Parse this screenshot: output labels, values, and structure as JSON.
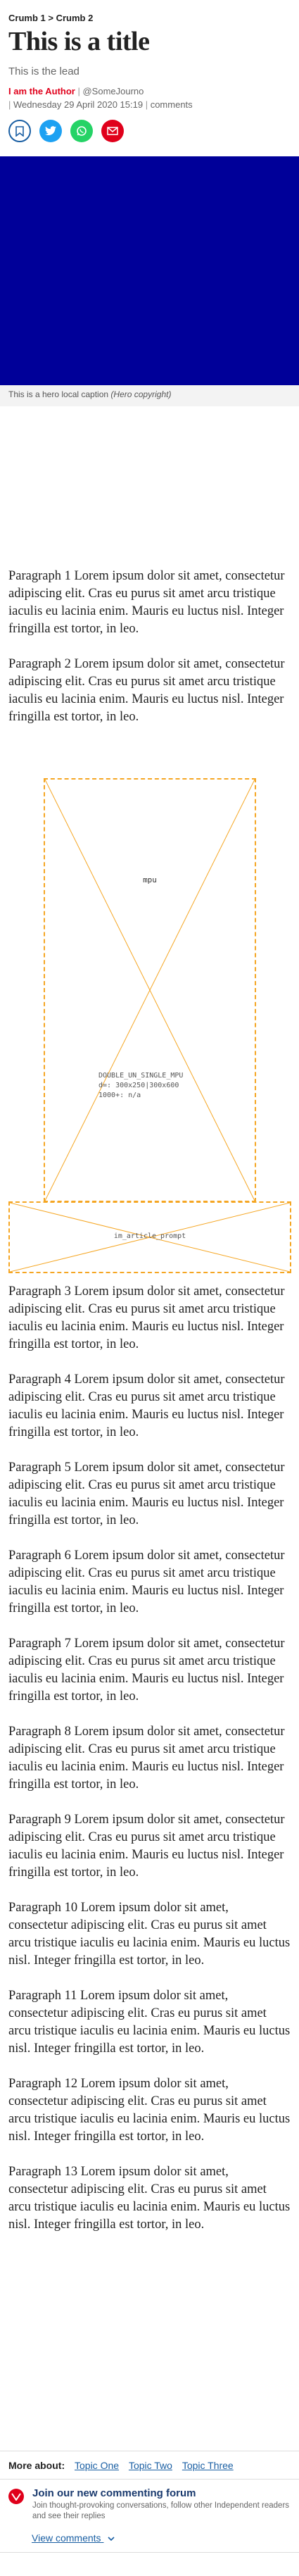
{
  "breadcrumb": {
    "item1": "Crumb 1",
    "separator": ">",
    "item2": "Crumb 2"
  },
  "article": {
    "title": "This is a title",
    "lead": "This is the lead",
    "author": "I am the Author",
    "handle": "@SomeJourno",
    "date": "Wednesday 29 April 2020 15:19",
    "comments_link": "comments"
  },
  "share": {
    "icons": [
      "bookmark-icon",
      "twitter-icon",
      "whatsapp-icon",
      "email-icon"
    ]
  },
  "hero": {
    "color": "#000099",
    "caption": "This is a hero local caption",
    "copyright": "(Hero copyright)"
  },
  "paragraphs": [
    "Paragraph 1 Lorem ipsum dolor sit amet, consectetur adipiscing elit. Cras eu purus sit amet arcu tristique iaculis eu lacinia enim. Mauris eu luctus nisl. Integer fringilla est tortor, in leo.",
    "Paragraph 2 Lorem ipsum dolor sit amet, consectetur adipiscing elit. Cras eu purus sit amet arcu tristique iaculis eu lacinia enim. Mauris eu luctus nisl. Integer fringilla est tortor, in leo.",
    "Paragraph 3 Lorem ipsum dolor sit amet, consectetur adipiscing elit. Cras eu purus sit amet arcu tristique iaculis eu lacinia enim. Mauris eu luctus nisl. Integer fringilla est tortor, in leo.",
    "Paragraph 4 Lorem ipsum dolor sit amet, consectetur adipiscing elit. Cras eu purus sit amet arcu tristique iaculis eu lacinia enim. Mauris eu luctus nisl. Integer fringilla est tortor, in leo.",
    "Paragraph 5 Lorem ipsum dolor sit amet, consectetur adipiscing elit. Cras eu purus sit amet arcu tristique iaculis eu lacinia enim. Mauris eu luctus nisl. Integer fringilla est tortor, in leo.",
    "Paragraph 6 Lorem ipsum dolor sit amet, consectetur adipiscing elit. Cras eu purus sit amet arcu tristique iaculis eu lacinia enim. Mauris eu luctus nisl. Integer fringilla est tortor, in leo.",
    "Paragraph 7 Lorem ipsum dolor sit amet, consectetur adipiscing elit. Cras eu purus sit amet arcu tristique iaculis eu lacinia enim. Mauris eu luctus nisl. Integer fringilla est tortor, in leo.",
    "Paragraph 8 Lorem ipsum dolor sit amet, consectetur adipiscing elit. Cras eu purus sit amet arcu tristique iaculis eu lacinia enim. Mauris eu luctus nisl. Integer fringilla est tortor, in leo.",
    "Paragraph 9 Lorem ipsum dolor sit amet, consectetur adipiscing elit. Cras eu purus sit amet arcu tristique iaculis eu lacinia enim. Mauris eu luctus nisl. Integer fringilla est tortor, in leo.",
    "Paragraph 10 Lorem ipsum dolor sit amet, consectetur adipiscing elit. Cras eu purus sit amet arcu tristique iaculis eu lacinia enim. Mauris eu luctus nisl. Integer fringilla est tortor, in leo.",
    "Paragraph 11 Lorem ipsum dolor sit amet, consectetur adipiscing elit. Cras eu purus sit amet arcu tristique iaculis eu lacinia enim. Mauris eu luctus nisl. Integer fringilla est tortor, in leo.",
    "Paragraph 12 Lorem ipsum dolor sit amet, consectetur adipiscing elit. Cras eu purus sit amet arcu tristique iaculis eu lacinia enim. Mauris eu luctus nisl. Integer fringilla est tortor, in leo.",
    "Paragraph 13 Lorem ipsum dolor sit amet, consectetur adipiscing elit. Cras eu purus sit amet arcu tristique iaculis eu lacinia enim. Mauris eu luctus nisl. Integer fringilla est tortor, in leo."
  ],
  "ad_mpu": {
    "label": "mpu",
    "slot": "DOUBLE_UN_SINGLE_MPU",
    "sizes": "d=: 300x250|300x600",
    "breakpoint": "1000+: n/a"
  },
  "ad_prompt": {
    "label": "im_article_prompt"
  },
  "more_about": {
    "label": "More about:",
    "topics": [
      "Topic One",
      "Topic Two",
      "Topic Three"
    ]
  },
  "forum": {
    "title": "Join our new commenting forum",
    "subtitle": "Join thought-provoking conversations, follow other Independent readers and see their replies",
    "view_comments": "View comments"
  },
  "colors": {
    "accent": "#e0001b",
    "placeholder_border": "#f5a623",
    "link": "#1a5fa3"
  }
}
